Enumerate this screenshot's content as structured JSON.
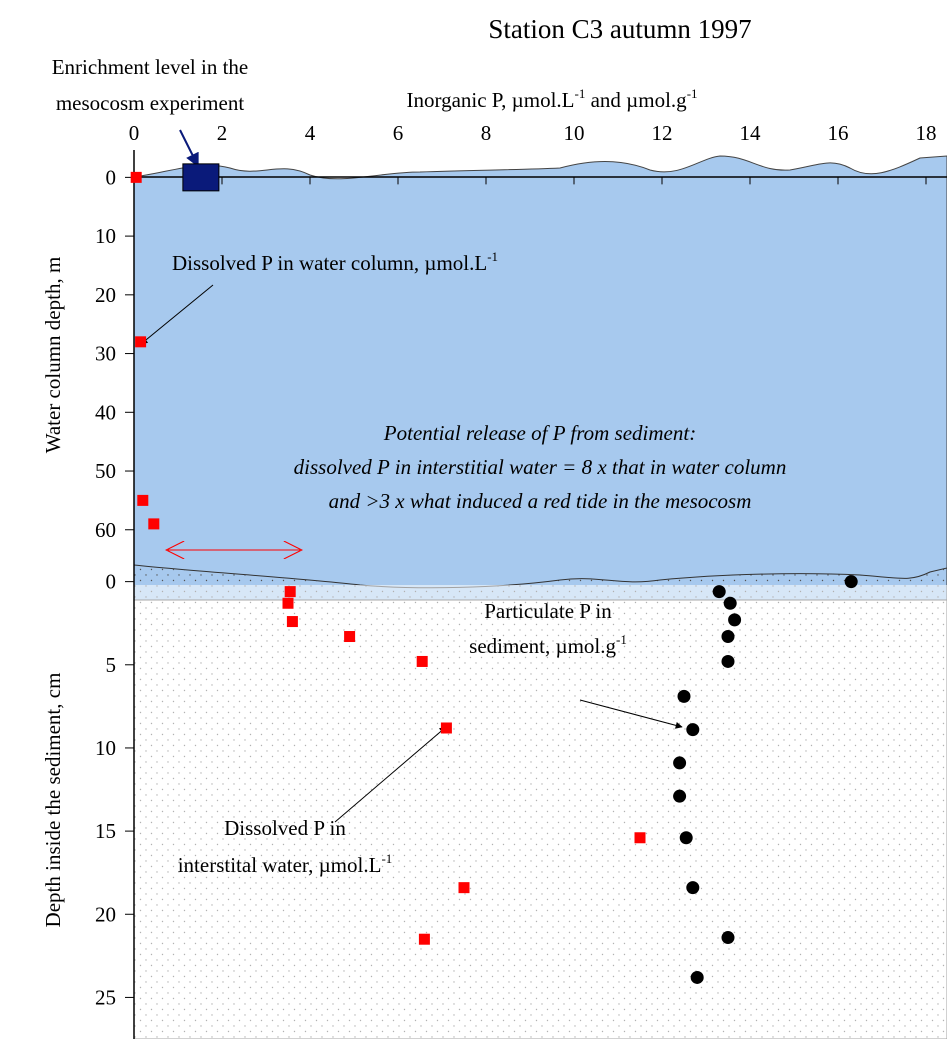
{
  "chart_data": [
    {
      "type": "scatter",
      "title": "Station C3 autumn 1997",
      "x_label": [
        "Inorganic P, µmol.L",
        "-1",
        " and µmol.g",
        "-1"
      ],
      "y_label": "Water column depth, m",
      "xlim": [
        0,
        18
      ],
      "xticks": [
        0,
        2,
        4,
        6,
        8,
        10,
        12,
        14,
        16,
        18
      ],
      "ylim": [
        -5,
        66
      ],
      "yticks": [
        0,
        10,
        20,
        30,
        40,
        50,
        60
      ],
      "series": [
        {
          "color": "#ff0000",
          "marker": "square",
          "x": [
            0.05,
            0.15,
            0.2,
            0.45
          ],
          "values": [
            0,
            28,
            55,
            59
          ]
        },
        {
          "color": "#0a1a7a",
          "marker": "big-square",
          "x": [
            1.52
          ],
          "values": [
            0
          ]
        }
      ],
      "annotations": {
        "enrichment": [
          "Enrichment level in the",
          "mesocosm experiment"
        ],
        "dissolved_water": [
          "Dissolved P in water column, µmol.L",
          "-1"
        ],
        "release": [
          "Potential release of P from sediment:",
          "dissolved P in interstitial water = 8 x that in water column",
          "and >3 x what induced a red tide in the mesocosm"
        ]
      }
    },
    {
      "type": "scatter",
      "y_label": "Depth inside the sediment, cm",
      "xlim": [
        0,
        18
      ],
      "ylim": [
        -1,
        27.5
      ],
      "yticks": [
        0,
        5,
        10,
        15,
        20,
        25
      ],
      "series": [
        {
          "color": "#ff0000",
          "marker": "square",
          "x": [
            3.55,
            3.5,
            3.6,
            4.9,
            6.55,
            7.1,
            11.5,
            7.5,
            6.6
          ],
          "values": [
            0.6,
            1.3,
            2.4,
            3.3,
            4.8,
            8.8,
            15.4,
            18.4,
            21.5
          ]
        },
        {
          "color": "#000000",
          "marker": "circle",
          "x": [
            16.3,
            13.3,
            13.55,
            13.65,
            13.5,
            13.5,
            12.5,
            12.7,
            12.4,
            12.4,
            12.55,
            12.7,
            13.5,
            12.8
          ],
          "values": [
            0,
            0.6,
            1.3,
            2.3,
            3.3,
            4.8,
            6.9,
            8.9,
            10.9,
            12.9,
            15.4,
            18.4,
            21.4,
            23.8
          ]
        }
      ],
      "annotations": {
        "particulate": [
          "Particulate P in",
          "sediment, µmol.g",
          "-1"
        ],
        "dissolved_interstitial": [
          "Dissolved P in",
          "interstital water, µmol.L",
          "-1"
        ]
      }
    }
  ]
}
